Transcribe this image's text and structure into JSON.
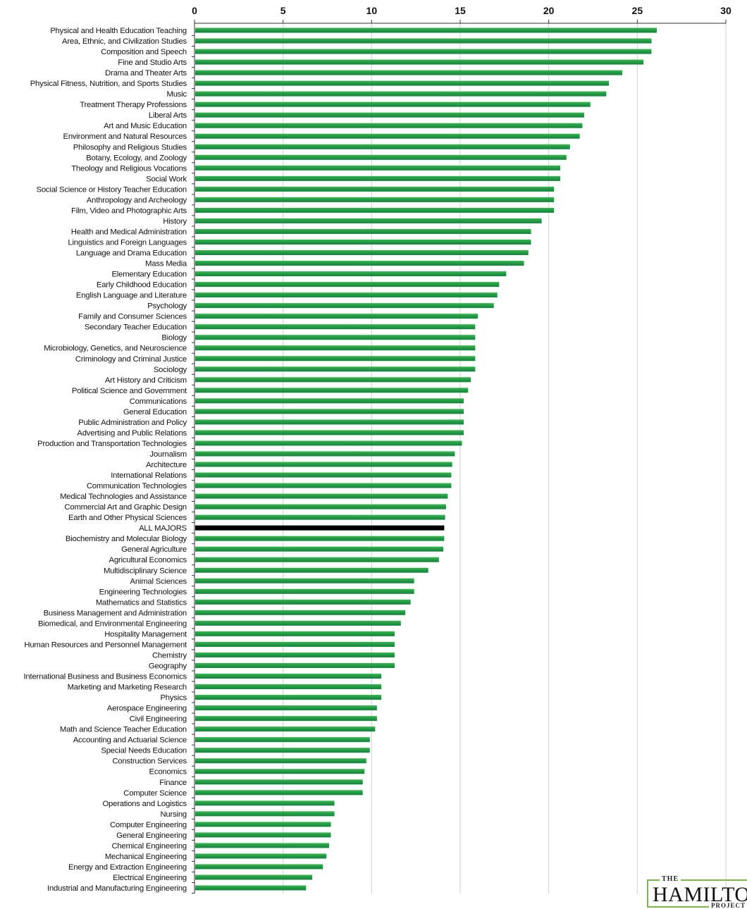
{
  "chart_data": {
    "type": "bar",
    "orientation": "horizontal",
    "title": "",
    "xlabel": "",
    "ylabel": "",
    "xlim": [
      0,
      30
    ],
    "xticks": [
      0,
      5,
      10,
      15,
      20,
      25,
      30
    ],
    "axis_position": "top",
    "grid": true,
    "colors": {
      "bar": "#1f9a47",
      "bar_light": "#3cb84c",
      "highlight": "#000000",
      "grid": "#d0d0d0"
    },
    "highlight_category": "ALL MAJORS",
    "categories": [
      "Physical and Health Education Teaching",
      "Area, Ethnic, and Civilization Studies",
      "Composition and Speech",
      "Fine and Studio Arts",
      "Drama and Theater Arts",
      "Physical Fitness, Nutrition, and Sports Studies",
      "Music",
      "Treatment Therapy Professions",
      "Liberal Arts",
      "Art and Music Education",
      "Environment and Natural Resources",
      "Philosophy and Religious Studies",
      "Botany, Ecology, and Zoology",
      "Theology and Religious Vocations",
      "Social Work",
      "Social Science or History Teacher Education",
      "Anthropology and Archeology",
      "Film, Video and Photographic Arts",
      "History",
      "Health and Medical Administration",
      "Linguistics and Foreign Languages",
      "Language and Drama Education",
      "Mass Media",
      "Elementary Education",
      "Early Childhood Education",
      "English Language and Literature",
      "Psychology",
      "Family and Consumer Sciences",
      "Secondary Teacher Education",
      "Biology",
      "Microbiology, Genetics, and Neuroscience",
      "Criminology and Criminal Justice",
      "Sociology",
      "Art History and Criticism",
      "Political Science and Government",
      "Communications",
      "General Education",
      "Public Administration and Policy",
      "Advertising and Public Relations",
      "Production and Transportation Technologies",
      "Journalism",
      "Architecture",
      "International Relations",
      "Communication Technologies",
      "Medical Technologies and Assistance",
      "Commercial Art and Graphic Design",
      "Earth and Other Physical Sciences",
      "ALL MAJORS",
      "Biochemistry and Molecular Biology",
      "General Agriculture",
      "Agricultural Economics",
      "Multidisciplinary Science",
      "Animal Sciences",
      "Engineering Technologies",
      "Mathematics and Statistics",
      "Business Management and Administration",
      "Biomedical, and Environmental Engineering",
      "Hospitality Management",
      "Human Resources and Personnel Management",
      "Chemistry",
      "Geography",
      "International Business and Business Economics",
      "Marketing and Marketing Research",
      "Physics",
      "Aerospace Engineering",
      "Civil Engineering",
      "Math and Science Teacher Education",
      "Accounting and Actuarial Science",
      "Special Needs Education",
      "Construction Services",
      "Economics",
      "Finance",
      "Computer Science",
      "Operations and Logistics",
      "Nursing",
      "Computer Engineering",
      "General Engineering",
      "Chemical Engineering",
      "Mechanical Engineering",
      "Energy and Extraction Engineering",
      "Electrical Engineering",
      "Industrial and Manufacturing Engineering"
    ],
    "values": [
      26.1,
      25.8,
      25.8,
      25.35,
      24.15,
      23.4,
      23.25,
      22.35,
      22.0,
      21.9,
      21.75,
      21.2,
      21.0,
      20.65,
      20.65,
      20.3,
      20.3,
      20.3,
      19.6,
      19.0,
      19.0,
      18.85,
      18.6,
      17.6,
      17.2,
      17.1,
      16.9,
      16.0,
      15.85,
      15.85,
      15.85,
      15.85,
      15.85,
      15.6,
      15.45,
      15.2,
      15.2,
      15.2,
      15.2,
      15.1,
      14.7,
      14.55,
      14.5,
      14.5,
      14.3,
      14.2,
      14.15,
      14.1,
      14.1,
      14.05,
      13.8,
      13.2,
      12.4,
      12.4,
      12.2,
      11.9,
      11.65,
      11.3,
      11.3,
      11.3,
      11.3,
      10.55,
      10.55,
      10.55,
      10.3,
      10.3,
      10.2,
      9.9,
      9.9,
      9.7,
      9.6,
      9.5,
      9.5,
      7.9,
      7.9,
      7.7,
      7.7,
      7.6,
      7.45,
      7.25,
      6.65,
      6.3
    ]
  },
  "logo": {
    "top": "THE",
    "main": "HAMILTON",
    "bottom": "PROJECT"
  }
}
